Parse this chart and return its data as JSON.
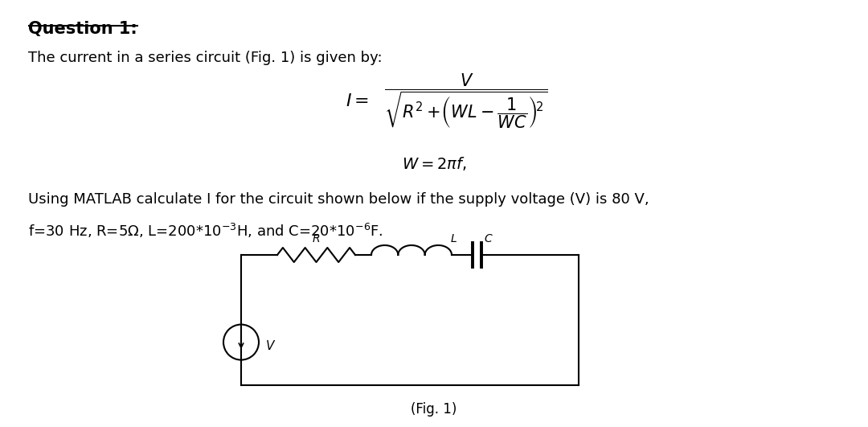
{
  "title": "Question 1:",
  "line1": "The current in a series circuit (Fig. 1) is given by:",
  "line2": "Using MATLAB calculate I for the circuit shown below if the supply voltage (V) is 80 V,",
  "line3": "f=30 Hz, R=5Ω, L=200*10⁻³H, and C=20*10⁻⁶F.",
  "fig_caption": "(Fig. 1)",
  "bg_color": "#ffffff",
  "text_color": "#000000",
  "font_size_title": 15,
  "font_size_body": 13
}
